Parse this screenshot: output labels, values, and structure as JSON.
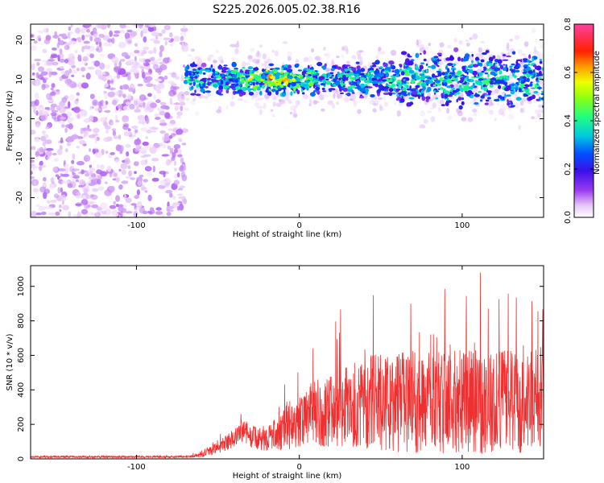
{
  "title": "S225.2026.005.02.38.R16",
  "chart_data": [
    {
      "type": "heatmap",
      "panel": "spectrogram",
      "title": "S225.2026.005.02.38.R16",
      "xlabel": "Height of straight line (km)",
      "ylabel": "Frequency (Hz)",
      "xlim": [
        -165,
        150
      ],
      "ylim": [
        -25,
        24
      ],
      "x_ticks": [
        -100,
        0,
        100
      ],
      "x_tick_labels": [
        "-100",
        "0",
        "100"
      ],
      "y_ticks": [
        -20,
        -10,
        0,
        10,
        20
      ],
      "y_tick_labels": [
        "-20",
        "-10",
        "0",
        "10",
        "20"
      ],
      "colorbar": {
        "label": "Normalized spectral amplitude",
        "range": [
          0,
          0.8
        ],
        "ticks": [
          0,
          0.2,
          0.4,
          0.6,
          0.8
        ],
        "tick_labels": [
          "0.0",
          "0.2",
          "0.4",
          "0.6",
          "0.8"
        ]
      },
      "signal_band": {
        "x_start": -70,
        "x_end": 150,
        "center_freq_hz": 10,
        "peak_amplitude": 0.62,
        "peak_x": -15,
        "noise_region_x": [
          -165,
          -70
        ]
      }
    },
    {
      "type": "line",
      "panel": "snr",
      "xlabel": "Height of straight line (km)",
      "ylabel": "SNR (10 * v/v)",
      "xlim": [
        -165,
        150
      ],
      "ylim": [
        0,
        1120
      ],
      "x_ticks": [
        -100,
        0,
        100
      ],
      "x_tick_labels": [
        "-100",
        "0",
        "100"
      ],
      "y_ticks": [
        0,
        200,
        400,
        600,
        800,
        1000
      ],
      "y_tick_labels": [
        "0",
        "200",
        "400",
        "600",
        "800",
        "1000"
      ],
      "series": [
        {
          "name": "SNR",
          "color": "#f03030",
          "envelope_x": [
            -165,
            -70,
            -60,
            -45,
            -35,
            -25,
            -15,
            -5,
            5,
            15,
            25,
            35,
            45,
            60,
            75,
            90,
            105,
            120,
            135,
            150
          ],
          "envelope_base": [
            12,
            12,
            20,
            90,
            160,
            110,
            140,
            190,
            230,
            260,
            300,
            320,
            330,
            330,
            330,
            330,
            330,
            330,
            330,
            330
          ],
          "envelope_amp": [
            6,
            6,
            30,
            90,
            140,
            130,
            180,
            280,
            330,
            380,
            460,
            520,
            560,
            580,
            600,
            600,
            600,
            600,
            600,
            600
          ]
        }
      ]
    }
  ]
}
